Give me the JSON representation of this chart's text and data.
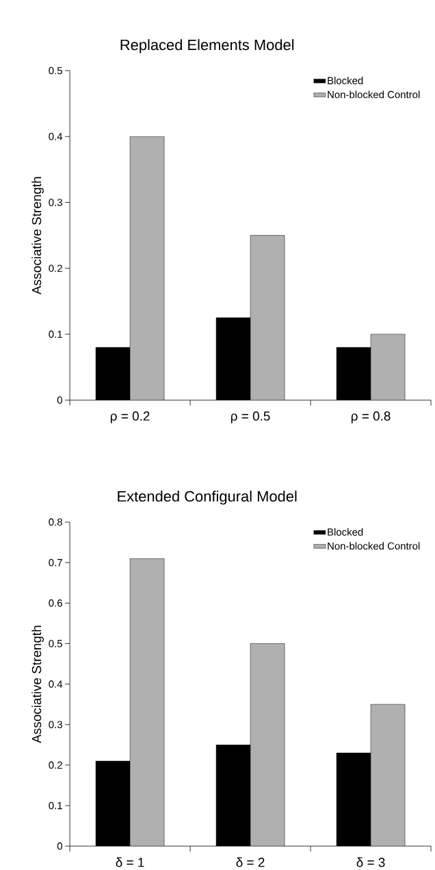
{
  "chart_data": [
    {
      "type": "bar",
      "title": "Replaced Elements Model",
      "ylabel": "Associative Strength",
      "categories": [
        "ρ = 0.2",
        "ρ = 0.5",
        "ρ = 0.8"
      ],
      "series": [
        {
          "name": "Blocked",
          "color": "#000000",
          "values": [
            0.08,
            0.125,
            0.08
          ]
        },
        {
          "name": "Non-blocked Control",
          "color": "#b0b0b0",
          "values": [
            0.4,
            0.25,
            0.1
          ]
        }
      ],
      "ylim": [
        0,
        0.5
      ],
      "yticks": [
        0,
        0.1,
        0.2,
        0.3,
        0.4,
        0.5
      ],
      "grid": false,
      "legend": "top right"
    },
    {
      "type": "bar",
      "title": "Extended Configural Model",
      "ylabel": "Associative Strength",
      "categories": [
        "δ = 1",
        "δ = 2",
        "δ = 3"
      ],
      "series": [
        {
          "name": "Blocked",
          "color": "#000000",
          "values": [
            0.21,
            0.25,
            0.23
          ]
        },
        {
          "name": "Non-blocked Control",
          "color": "#b0b0b0",
          "values": [
            0.71,
            0.5,
            0.35
          ]
        }
      ],
      "ylim": [
        0,
        0.8
      ],
      "yticks": [
        0,
        0.1,
        0.2,
        0.3,
        0.4,
        0.5,
        0.6,
        0.7,
        0.8
      ],
      "grid": false,
      "legend": "top right"
    }
  ]
}
